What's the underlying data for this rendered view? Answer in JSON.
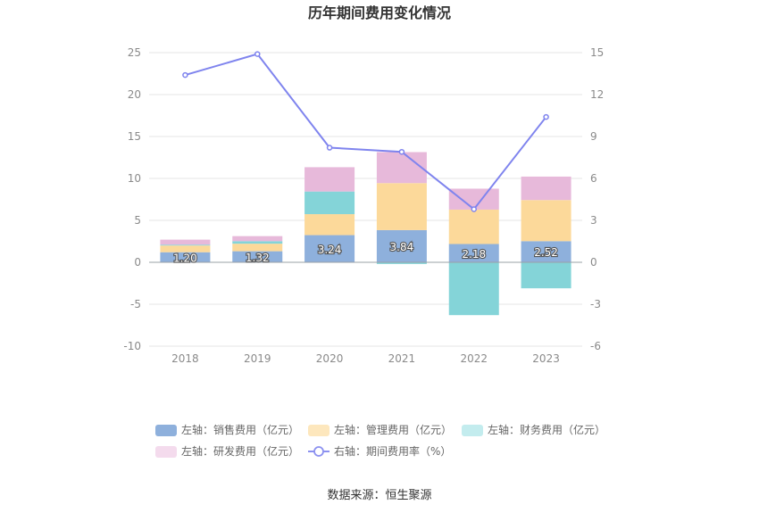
{
  "chart_data": {
    "type": "bar",
    "title": "历年期间费用变化情况",
    "categories": [
      "2018",
      "2019",
      "2020",
      "2021",
      "2022",
      "2023"
    ],
    "series": [
      {
        "name": "左轴：销售费用（亿元）",
        "kind": "bar",
        "axis": "left",
        "color": "#8eb0dc",
        "values": [
          1.2,
          1.32,
          3.24,
          3.84,
          2.18,
          2.52
        ],
        "labels": [
          "1.20",
          "1.32",
          "3.24",
          "3.84",
          "2.18",
          "2.52"
        ]
      },
      {
        "name": "左轴：管理费用（亿元）",
        "kind": "bar",
        "axis": "left",
        "color": "#fcd99a",
        "values": [
          0.8,
          0.9,
          2.5,
          5.6,
          4.1,
          4.9
        ]
      },
      {
        "name": "左轴：财务费用（亿元）",
        "kind": "bar",
        "axis": "left",
        "color": "#84d4d8",
        "values": [
          0.1,
          0.3,
          2.7,
          -0.2,
          -6.3,
          -3.1
        ]
      },
      {
        "name": "左轴：研发费用（亿元）",
        "kind": "bar",
        "axis": "left",
        "color": "#e7b9da",
        "values": [
          0.6,
          0.6,
          2.9,
          3.7,
          2.5,
          2.8
        ]
      },
      {
        "name": "右轴：期间费用率（%）",
        "kind": "line",
        "axis": "right",
        "color": "#7f84ee",
        "values": [
          13.4,
          14.9,
          8.2,
          7.9,
          3.8,
          10.4
        ]
      }
    ],
    "y_left": {
      "min": -10,
      "max": 25,
      "ticks": [
        -10,
        -5,
        0,
        5,
        10,
        15,
        20,
        25
      ]
    },
    "y_right": {
      "min": -6,
      "max": 15,
      "ticks": [
        -6,
        -3,
        0,
        3,
        6,
        9,
        12,
        15
      ]
    },
    "grid": true,
    "legend_position": "bottom",
    "legend_swatch_colors": [
      "#8eb0dc",
      "#fde7bd",
      "#c3ecee",
      "#f4dbed",
      "#8c91f0"
    ]
  },
  "source_label": "数据来源：恒生聚源"
}
